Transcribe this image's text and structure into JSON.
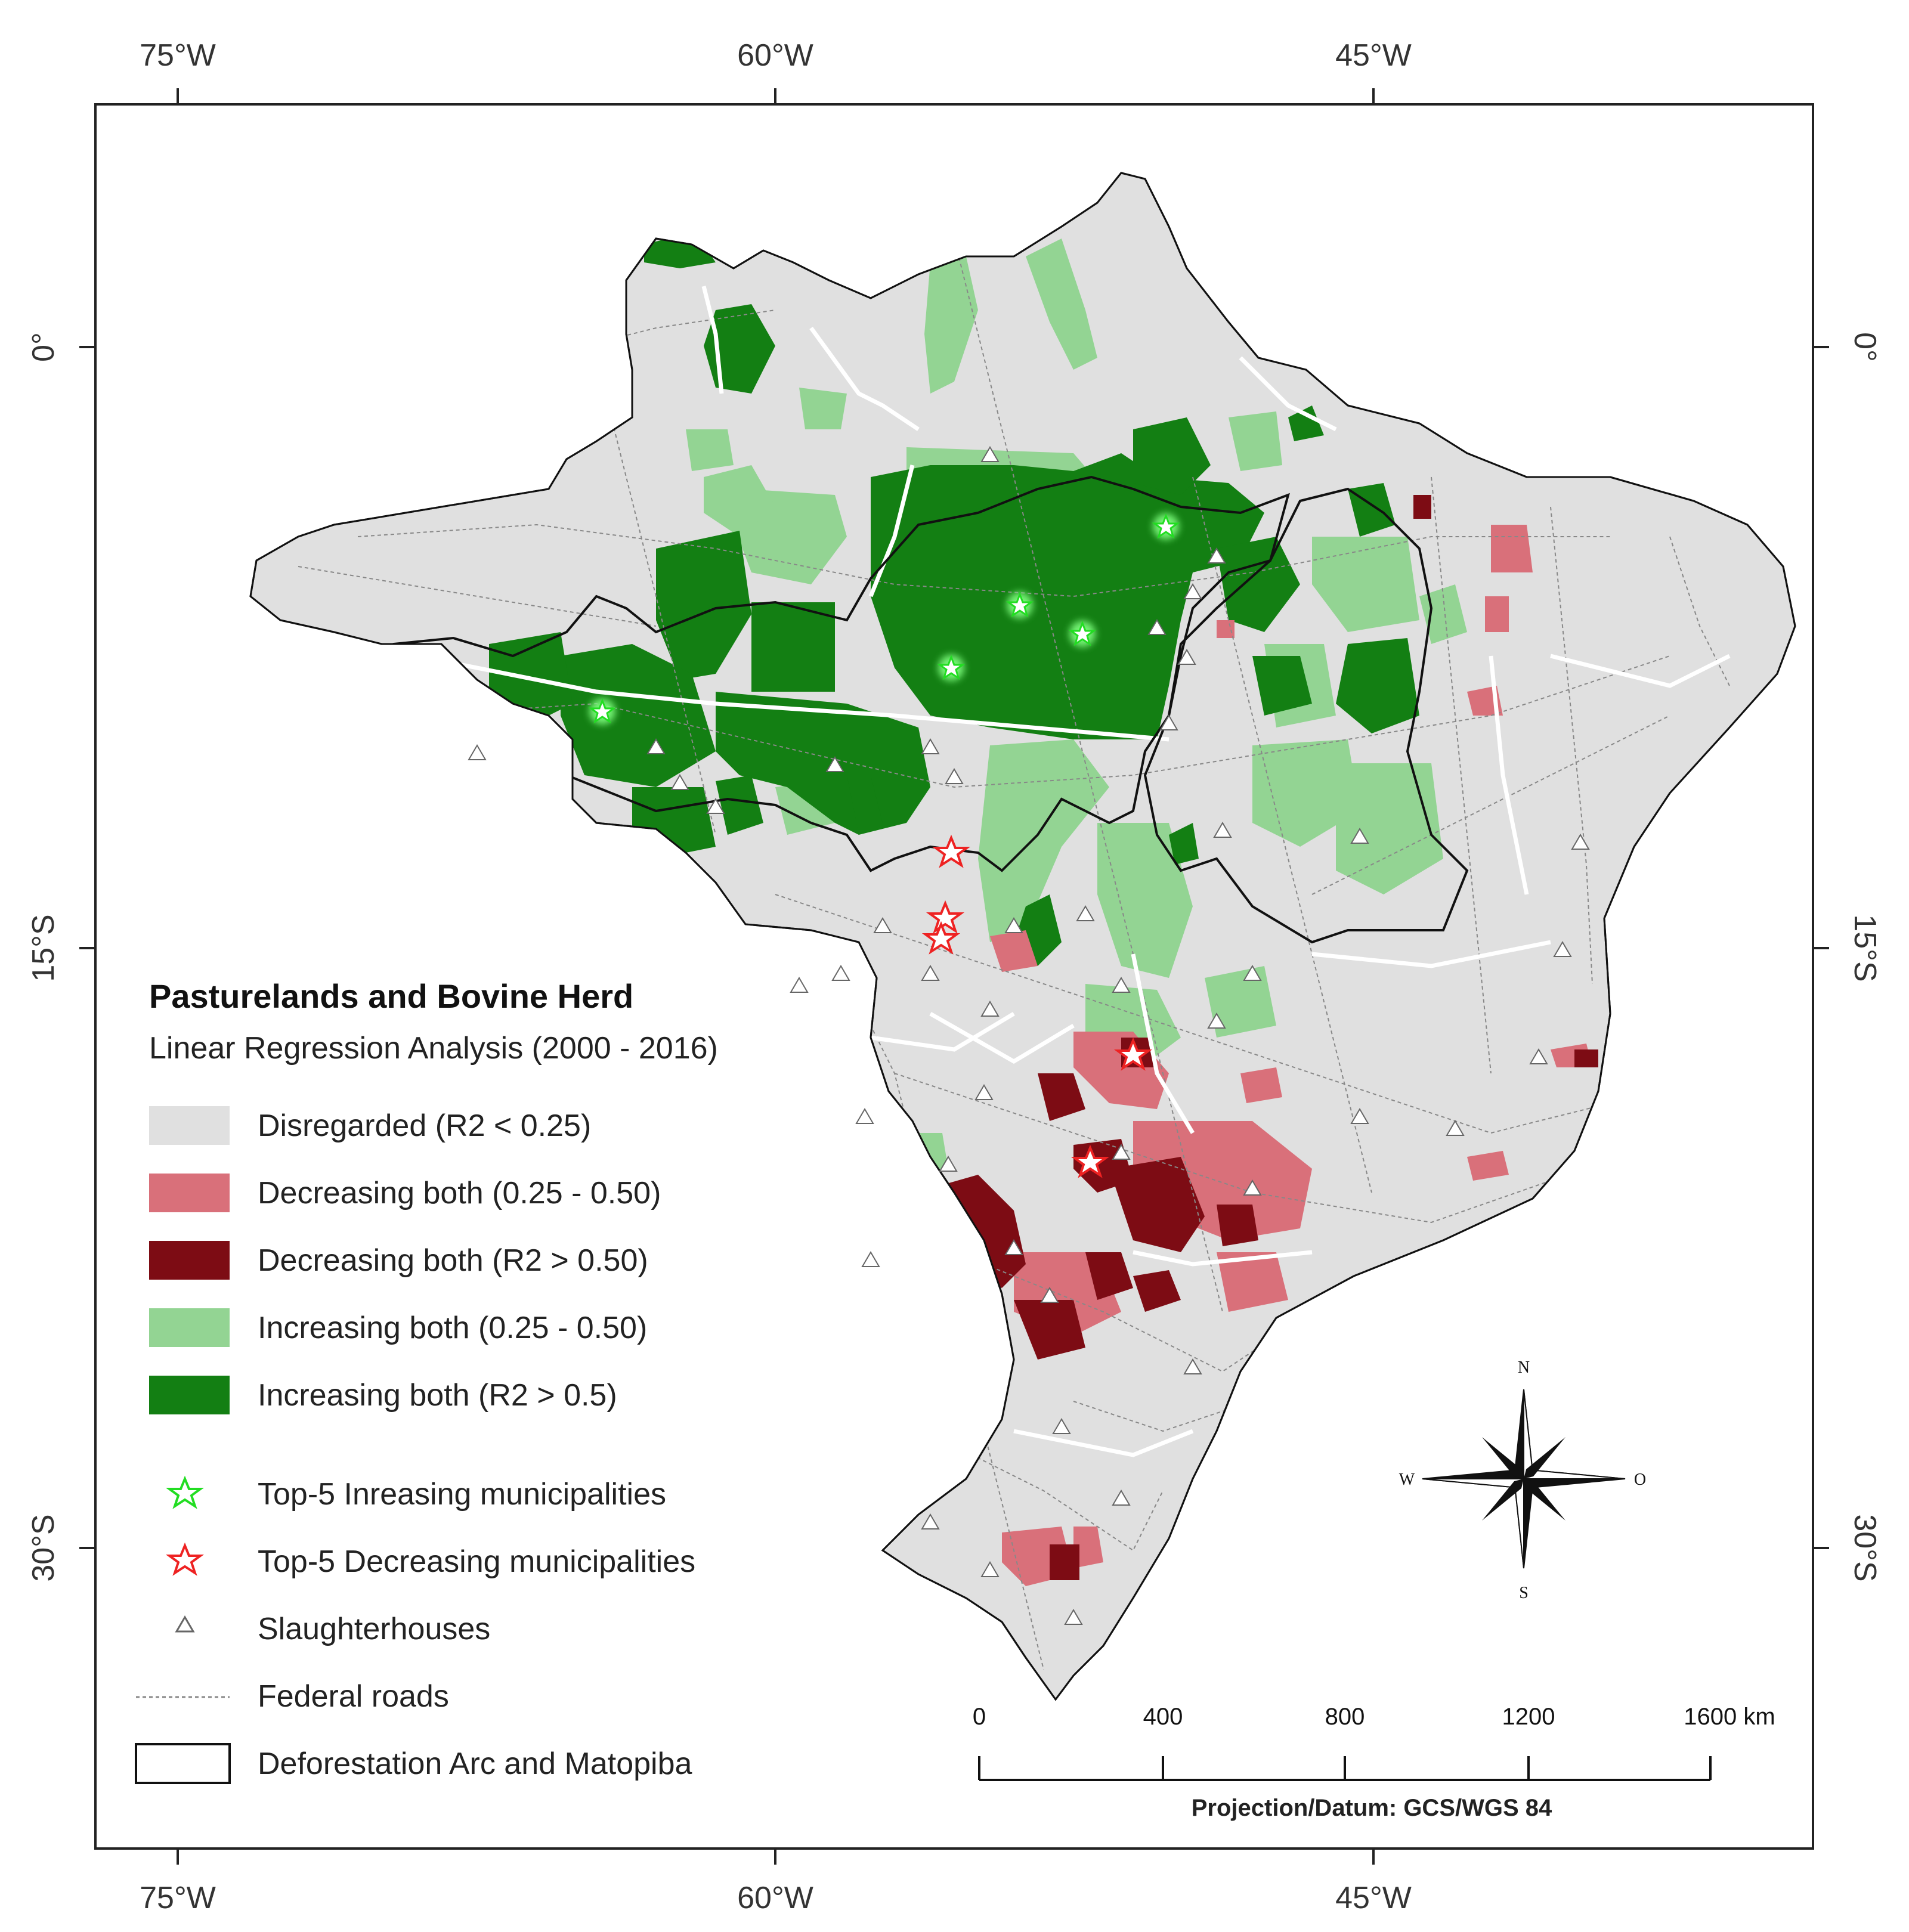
{
  "legend": {
    "title": "Pasturelands and Bovine Herd",
    "subtitle": "Linear Regression Analysis (2000 - 2016)",
    "classes": [
      {
        "key": "disregarded",
        "label": "Disregarded (R2 < 0.25)",
        "color": "#e0e0e0"
      },
      {
        "key": "dec_weak",
        "label": "Decreasing both (0.25 - 0.50)",
        "color": "#d9707a"
      },
      {
        "key": "dec_strong",
        "label": "Decreasing both (R2 > 0.50)",
        "color": "#7d0c14"
      },
      {
        "key": "inc_weak",
        "label": "Increasing both (0.25 - 0.50)",
        "color": "#93d493"
      },
      {
        "key": "inc_strong",
        "label": "Increasing both (R2 > 0.5)",
        "color": "#137f13"
      }
    ],
    "symbols": [
      {
        "key": "top_inc",
        "label": "Top-5 Inreasing municipalities",
        "icon": "green-star-icon",
        "color": "#22dd22"
      },
      {
        "key": "top_dec",
        "label": "Top-5 Decreasing municipalities",
        "icon": "red-star-icon",
        "color": "#ee2222"
      },
      {
        "key": "slaughter",
        "label": "Slaughterhouses",
        "icon": "triangle-icon"
      },
      {
        "key": "roads",
        "label": "Federal roads",
        "icon": "dashed-line-icon"
      },
      {
        "key": "arc",
        "label": "Deforestation Arc and Matopiba",
        "icon": "outline-box-icon"
      }
    ]
  },
  "axes": {
    "top": [
      "75°W",
      "60°W",
      "45°W"
    ],
    "bottom": [
      "75°W",
      "60°W",
      "45°W"
    ],
    "left": [
      "0°",
      "15°S",
      "30°S"
    ],
    "right": [
      "0°",
      "15°S",
      "30°S"
    ]
  },
  "scalebar": {
    "labels": [
      "0",
      "400",
      "800",
      "1200",
      "1600 km"
    ],
    "projection": "Projection/Datum: GCS/WGS 84"
  },
  "compass": {
    "n": "N",
    "s": "S",
    "w": "W",
    "e": "O"
  }
}
